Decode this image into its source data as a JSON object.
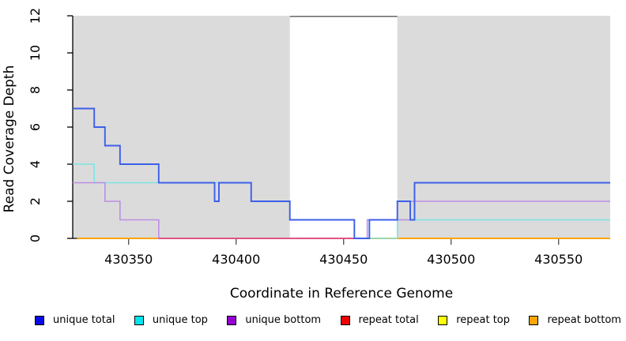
{
  "chart_data": {
    "type": "line",
    "subtype": "step-coverage",
    "title": "",
    "xlabel": "Coordinate in Reference Genome",
    "ylabel": "Read Coverage Depth",
    "xlim": [
      430324,
      430574
    ],
    "ylim": [
      0,
      12
    ],
    "x_ticks": [
      430350,
      430400,
      430450,
      430500,
      430550
    ],
    "y_ticks": [
      0,
      2,
      4,
      6,
      8,
      10,
      12
    ],
    "grid": false,
    "legend_position": "bottom",
    "background_shading": {
      "color": "#DBDBDB",
      "regions": [
        [
          430324,
          430425
        ],
        [
          430475,
          430574
        ]
      ],
      "white_gap": {
        "from": 430425,
        "to": 430475,
        "top_border_color": "#666666"
      }
    },
    "series": [
      {
        "name": "repeat total",
        "line_color": "#DC2B47",
        "line_width": 1.6,
        "points": [
          [
            430326,
            0
          ],
          [
            430574,
            0
          ]
        ]
      },
      {
        "name": "repeat top",
        "line_color": "#FFFF00",
        "line_width": 1.6,
        "points": [
          [
            430326,
            0
          ],
          [
            430574,
            0
          ]
        ]
      },
      {
        "name": "repeat bottom",
        "line_color": "#FFA500",
        "line_width": 1.9,
        "points": [
          [
            430326,
            0
          ],
          [
            430574,
            0
          ]
        ]
      },
      {
        "name": "unique top",
        "line_color": "#7FE3E4",
        "line_width": 1.6,
        "points": [
          [
            430324,
            4
          ],
          [
            430334,
            3
          ],
          [
            430407,
            2
          ],
          [
            430425,
            1
          ],
          [
            430455,
            0
          ],
          [
            430475,
            1
          ],
          [
            430574,
            1
          ]
        ]
      },
      {
        "name": "unique bottom",
        "line_color": "#BD8EE4",
        "line_width": 1.6,
        "points": [
          [
            430324,
            3
          ],
          [
            430339,
            2
          ],
          [
            430346,
            1
          ],
          [
            430364,
            0
          ],
          [
            430461,
            1
          ],
          [
            430481,
            2
          ],
          [
            430574,
            2
          ]
        ]
      },
      {
        "name": "unique total",
        "line_color": "#3C5FE8",
        "line_width": 1.9,
        "points": [
          [
            430324,
            7
          ],
          [
            430334,
            6
          ],
          [
            430339,
            5
          ],
          [
            430346,
            4
          ],
          [
            430364,
            3
          ],
          [
            430390,
            2
          ],
          [
            430392,
            3
          ],
          [
            430407,
            2
          ],
          [
            430425,
            1
          ],
          [
            430455,
            0
          ],
          [
            430462,
            1
          ],
          [
            430475,
            2
          ],
          [
            430481,
            1
          ],
          [
            430483,
            3
          ],
          [
            430574,
            3
          ]
        ]
      }
    ],
    "overlap_segments": [
      {
        "value": 0,
        "from": 430364,
        "to": 430455,
        "color": "#E0557F",
        "after_series": 4,
        "note": "unique bottom at depth 0 drawn over repeat lines appears pink"
      }
    ],
    "legend": [
      {
        "label": "unique total",
        "slug": "unique-total",
        "color": "#0A0AE6"
      },
      {
        "label": "unique top",
        "slug": "unique-top",
        "color": "#00E5EE"
      },
      {
        "label": "unique bottom",
        "slug": "unique-bottom",
        "color": "#9400D3"
      },
      {
        "label": "repeat total",
        "slug": "repeat-total",
        "color": "#F20000"
      },
      {
        "label": "repeat top",
        "slug": "repeat-top",
        "color": "#FFFF00"
      },
      {
        "label": "repeat bottom",
        "slug": "repeat-bottom",
        "color": "#FFA500"
      }
    ],
    "axis_colors": {
      "axis_line": "#000000",
      "x_tick": "#4d4d4d",
      "y_tick": "#000000"
    }
  }
}
